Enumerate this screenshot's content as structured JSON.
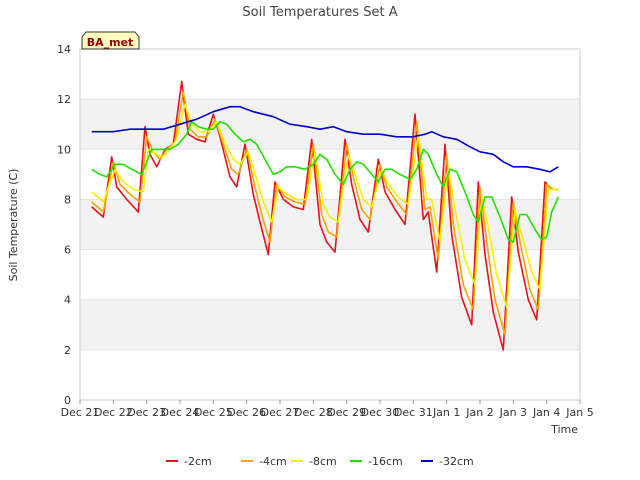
{
  "chart_data": {
    "type": "line",
    "title": "Soil Temperatures Set A",
    "xlabel": "Time",
    "ylabel": "Soil Temperature (C)",
    "badge": "BA_met",
    "ylim": [
      0,
      14
    ],
    "yticks": [
      0,
      2,
      4,
      6,
      8,
      10,
      12,
      14
    ],
    "xlim": [
      0,
      15
    ],
    "xticks": [
      {
        "t": 0,
        "label": "Dec 21"
      },
      {
        "t": 1,
        "label": "Dec 22"
      },
      {
        "t": 2,
        "label": "Dec 23"
      },
      {
        "t": 3,
        "label": "Dec 24"
      },
      {
        "t": 4,
        "label": "Dec 25"
      },
      {
        "t": 5,
        "label": "Dec 26"
      },
      {
        "t": 6,
        "label": "Dec 27"
      },
      {
        "t": 7,
        "label": "Dec 28"
      },
      {
        "t": 8,
        "label": "Dec 29"
      },
      {
        "t": 9,
        "label": "Dec 30"
      },
      {
        "t": 10,
        "label": "Dec 31"
      },
      {
        "t": 11,
        "label": "Jan 1"
      },
      {
        "t": 12,
        "label": "Jan 2"
      },
      {
        "t": 13,
        "label": "Jan 3"
      },
      {
        "t": 14,
        "label": "Jan 4"
      },
      {
        "t": 15,
        "label": "Jan 5"
      }
    ],
    "grid": true,
    "legend": "bottom",
    "series": [
      {
        "name": "-2cm",
        "color": "#e8101a",
        "points": [
          [
            0.35,
            7.7
          ],
          [
            0.7,
            7.3
          ],
          [
            0.95,
            9.7
          ],
          [
            1.1,
            8.5
          ],
          [
            1.4,
            8.0
          ],
          [
            1.75,
            7.5
          ],
          [
            1.95,
            10.9
          ],
          [
            2.1,
            9.8
          ],
          [
            2.3,
            9.3
          ],
          [
            2.55,
            10.0
          ],
          [
            2.8,
            10.2
          ],
          [
            3.05,
            12.7
          ],
          [
            3.25,
            10.6
          ],
          [
            3.5,
            10.4
          ],
          [
            3.75,
            10.3
          ],
          [
            4.0,
            11.4
          ],
          [
            4.2,
            10.5
          ],
          [
            4.5,
            8.9
          ],
          [
            4.7,
            8.5
          ],
          [
            4.95,
            10.2
          ],
          [
            5.2,
            8.2
          ],
          [
            5.4,
            7.1
          ],
          [
            5.65,
            5.8
          ],
          [
            5.85,
            8.7
          ],
          [
            6.1,
            8.0
          ],
          [
            6.4,
            7.7
          ],
          [
            6.7,
            7.6
          ],
          [
            6.95,
            10.4
          ],
          [
            7.2,
            7.0
          ],
          [
            7.4,
            6.3
          ],
          [
            7.65,
            5.9
          ],
          [
            7.95,
            10.4
          ],
          [
            8.15,
            8.6
          ],
          [
            8.4,
            7.2
          ],
          [
            8.65,
            6.7
          ],
          [
            8.95,
            9.6
          ],
          [
            9.15,
            8.3
          ],
          [
            9.45,
            7.6
          ],
          [
            9.75,
            7.0
          ],
          [
            10.05,
            11.4
          ],
          [
            10.3,
            7.2
          ],
          [
            10.45,
            7.5
          ],
          [
            10.7,
            5.1
          ],
          [
            10.95,
            10.2
          ],
          [
            11.15,
            6.6
          ],
          [
            11.45,
            4.1
          ],
          [
            11.75,
            3.0
          ],
          [
            11.95,
            8.7
          ],
          [
            12.15,
            5.8
          ],
          [
            12.4,
            3.5
          ],
          [
            12.7,
            2.0
          ],
          [
            12.95,
            8.1
          ],
          [
            13.15,
            5.9
          ],
          [
            13.45,
            4.0
          ],
          [
            13.7,
            3.2
          ],
          [
            13.95,
            8.7
          ],
          [
            14.15,
            8.4
          ],
          [
            14.35,
            8.4
          ]
        ]
      },
      {
        "name": "-4cm",
        "color": "#f5a300",
        "points": [
          [
            0.35,
            7.9
          ],
          [
            0.7,
            7.5
          ],
          [
            1.0,
            9.5
          ],
          [
            1.2,
            8.6
          ],
          [
            1.5,
            8.2
          ],
          [
            1.8,
            7.9
          ],
          [
            2.0,
            10.5
          ],
          [
            2.2,
            9.9
          ],
          [
            2.4,
            9.6
          ],
          [
            2.6,
            10.0
          ],
          [
            2.85,
            10.3
          ],
          [
            3.1,
            12.3
          ],
          [
            3.3,
            10.8
          ],
          [
            3.55,
            10.5
          ],
          [
            3.8,
            10.5
          ],
          [
            4.05,
            11.2
          ],
          [
            4.25,
            10.4
          ],
          [
            4.55,
            9.2
          ],
          [
            4.75,
            9.0
          ],
          [
            5.0,
            10.0
          ],
          [
            5.25,
            8.5
          ],
          [
            5.45,
            7.4
          ],
          [
            5.7,
            6.3
          ],
          [
            5.9,
            8.6
          ],
          [
            6.15,
            8.1
          ],
          [
            6.45,
            7.9
          ],
          [
            6.75,
            7.8
          ],
          [
            7.0,
            10.2
          ],
          [
            7.25,
            7.4
          ],
          [
            7.45,
            6.7
          ],
          [
            7.7,
            6.5
          ],
          [
            8.0,
            10.2
          ],
          [
            8.2,
            8.9
          ],
          [
            8.45,
            7.6
          ],
          [
            8.7,
            7.2
          ],
          [
            9.0,
            9.4
          ],
          [
            9.2,
            8.5
          ],
          [
            9.5,
            7.9
          ],
          [
            9.8,
            7.4
          ],
          [
            10.1,
            11.1
          ],
          [
            10.35,
            7.6
          ],
          [
            10.5,
            7.7
          ],
          [
            10.75,
            5.6
          ],
          [
            11.0,
            9.8
          ],
          [
            11.2,
            7.0
          ],
          [
            11.5,
            4.6
          ],
          [
            11.8,
            3.6
          ],
          [
            12.0,
            8.5
          ],
          [
            12.2,
            6.3
          ],
          [
            12.45,
            4.0
          ],
          [
            12.75,
            2.6
          ],
          [
            13.0,
            7.9
          ],
          [
            13.2,
            6.3
          ],
          [
            13.5,
            4.4
          ],
          [
            13.75,
            3.6
          ],
          [
            14.0,
            8.6
          ],
          [
            14.2,
            8.4
          ],
          [
            14.35,
            8.4
          ]
        ]
      },
      {
        "name": "-8cm",
        "color": "#f5f200",
        "points": [
          [
            0.35,
            8.3
          ],
          [
            0.7,
            7.9
          ],
          [
            1.05,
            9.2
          ],
          [
            1.3,
            8.7
          ],
          [
            1.6,
            8.4
          ],
          [
            1.9,
            8.3
          ],
          [
            2.05,
            10.0
          ],
          [
            2.3,
            9.8
          ],
          [
            2.5,
            9.7
          ],
          [
            2.7,
            10.0
          ],
          [
            2.9,
            10.4
          ],
          [
            3.15,
            11.8
          ],
          [
            3.35,
            11.0
          ],
          [
            3.6,
            10.7
          ],
          [
            3.85,
            10.7
          ],
          [
            4.1,
            11.1
          ],
          [
            4.3,
            10.4
          ],
          [
            4.6,
            9.6
          ],
          [
            4.8,
            9.4
          ],
          [
            5.05,
            9.9
          ],
          [
            5.3,
            8.8
          ],
          [
            5.5,
            7.9
          ],
          [
            5.75,
            7.1
          ],
          [
            5.95,
            8.5
          ],
          [
            6.2,
            8.2
          ],
          [
            6.5,
            8.0
          ],
          [
            6.8,
            8.0
          ],
          [
            7.05,
            9.9
          ],
          [
            7.3,
            7.8
          ],
          [
            7.5,
            7.3
          ],
          [
            7.75,
            7.1
          ],
          [
            8.05,
            9.8
          ],
          [
            8.25,
            9.0
          ],
          [
            8.5,
            8.0
          ],
          [
            8.75,
            7.7
          ],
          [
            9.05,
            9.2
          ],
          [
            9.25,
            8.6
          ],
          [
            9.55,
            8.1
          ],
          [
            9.85,
            7.8
          ],
          [
            10.15,
            10.6
          ],
          [
            10.4,
            8.0
          ],
          [
            10.55,
            8.0
          ],
          [
            10.8,
            6.3
          ],
          [
            11.05,
            9.3
          ],
          [
            11.25,
            7.6
          ],
          [
            11.55,
            5.6
          ],
          [
            11.85,
            4.6
          ],
          [
            12.05,
            8.1
          ],
          [
            12.25,
            6.9
          ],
          [
            12.5,
            5.0
          ],
          [
            12.8,
            3.7
          ],
          [
            13.05,
            7.6
          ],
          [
            13.25,
            6.6
          ],
          [
            13.55,
            5.1
          ],
          [
            13.8,
            4.4
          ],
          [
            14.05,
            8.4
          ],
          [
            14.25,
            8.4
          ],
          [
            14.35,
            8.4
          ]
        ]
      },
      {
        "name": "-16cm",
        "color": "#22e000",
        "points": [
          [
            0.35,
            9.2
          ],
          [
            0.6,
            9.0
          ],
          [
            0.8,
            8.9
          ],
          [
            1.05,
            9.4
          ],
          [
            1.3,
            9.4
          ],
          [
            1.55,
            9.2
          ],
          [
            1.85,
            9.0
          ],
          [
            2.15,
            10.0
          ],
          [
            2.4,
            10.0
          ],
          [
            2.7,
            10.0
          ],
          [
            2.95,
            10.2
          ],
          [
            3.2,
            10.6
          ],
          [
            3.35,
            11.1
          ],
          [
            3.55,
            10.9
          ],
          [
            3.8,
            10.8
          ],
          [
            4.0,
            10.8
          ],
          [
            4.2,
            11.1
          ],
          [
            4.4,
            11.0
          ],
          [
            4.65,
            10.6
          ],
          [
            4.9,
            10.3
          ],
          [
            5.1,
            10.4
          ],
          [
            5.3,
            10.2
          ],
          [
            5.55,
            9.6
          ],
          [
            5.8,
            9.0
          ],
          [
            6.0,
            9.1
          ],
          [
            6.2,
            9.3
          ],
          [
            6.45,
            9.3
          ],
          [
            6.75,
            9.2
          ],
          [
            7.0,
            9.4
          ],
          [
            7.2,
            9.8
          ],
          [
            7.4,
            9.6
          ],
          [
            7.65,
            9.0
          ],
          [
            7.9,
            8.6
          ],
          [
            8.1,
            9.2
          ],
          [
            8.3,
            9.5
          ],
          [
            8.5,
            9.4
          ],
          [
            8.75,
            9.0
          ],
          [
            8.95,
            8.7
          ],
          [
            9.15,
            9.2
          ],
          [
            9.35,
            9.2
          ],
          [
            9.6,
            9.0
          ],
          [
            9.9,
            8.8
          ],
          [
            10.1,
            9.2
          ],
          [
            10.3,
            10.0
          ],
          [
            10.45,
            9.8
          ],
          [
            10.7,
            9.0
          ],
          [
            10.9,
            8.5
          ],
          [
            11.1,
            9.2
          ],
          [
            11.3,
            9.1
          ],
          [
            11.55,
            8.3
          ],
          [
            11.8,
            7.4
          ],
          [
            11.95,
            7.1
          ],
          [
            12.15,
            8.1
          ],
          [
            12.35,
            8.1
          ],
          [
            12.6,
            7.3
          ],
          [
            12.85,
            6.4
          ],
          [
            13.0,
            6.3
          ],
          [
            13.2,
            7.4
          ],
          [
            13.4,
            7.4
          ],
          [
            13.65,
            6.8
          ],
          [
            13.85,
            6.4
          ],
          [
            14.0,
            6.5
          ],
          [
            14.15,
            7.5
          ],
          [
            14.35,
            8.1
          ]
        ]
      },
      {
        "name": "-32cm",
        "color": "#0000cc",
        "points": [
          [
            0.35,
            10.7
          ],
          [
            1.0,
            10.7
          ],
          [
            1.5,
            10.8
          ],
          [
            2.0,
            10.8
          ],
          [
            2.5,
            10.8
          ],
          [
            3.0,
            11.0
          ],
          [
            3.5,
            11.2
          ],
          [
            4.0,
            11.5
          ],
          [
            4.5,
            11.7
          ],
          [
            4.8,
            11.7
          ],
          [
            5.2,
            11.5
          ],
          [
            5.8,
            11.3
          ],
          [
            6.3,
            11.0
          ],
          [
            6.8,
            10.9
          ],
          [
            7.2,
            10.8
          ],
          [
            7.6,
            10.9
          ],
          [
            8.0,
            10.7
          ],
          [
            8.5,
            10.6
          ],
          [
            9.0,
            10.6
          ],
          [
            9.5,
            10.5
          ],
          [
            10.0,
            10.5
          ],
          [
            10.35,
            10.6
          ],
          [
            10.55,
            10.7
          ],
          [
            10.9,
            10.5
          ],
          [
            11.3,
            10.4
          ],
          [
            11.7,
            10.1
          ],
          [
            12.0,
            9.9
          ],
          [
            12.4,
            9.8
          ],
          [
            12.7,
            9.5
          ],
          [
            13.0,
            9.3
          ],
          [
            13.4,
            9.3
          ],
          [
            13.8,
            9.2
          ],
          [
            14.1,
            9.1
          ],
          [
            14.35,
            9.3
          ]
        ]
      }
    ]
  }
}
